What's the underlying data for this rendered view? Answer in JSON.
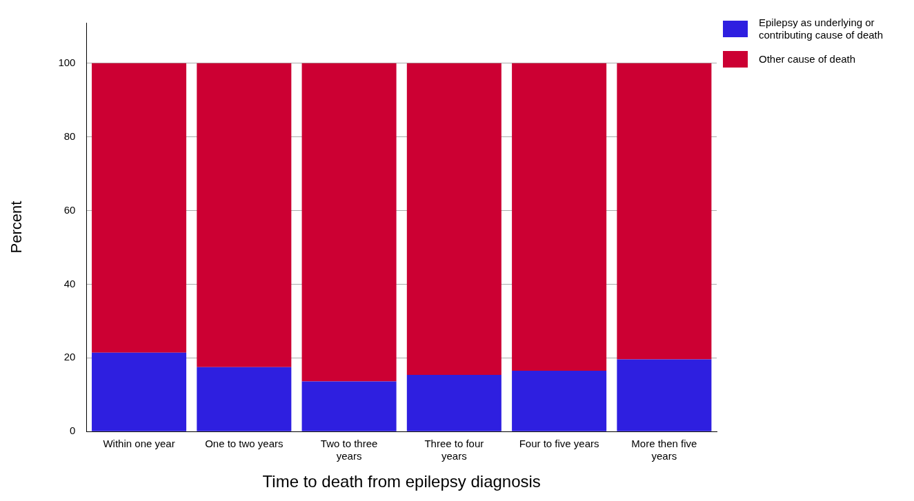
{
  "chart_data": {
    "type": "bar",
    "stacked": true,
    "xlabel": "Time to death from epilepsy diagnosis",
    "ylabel": "Percent",
    "categories": [
      "Within one year",
      "One to two years",
      "Two to three years",
      "Three to four years",
      "Four to five years",
      "More then five years"
    ],
    "series": [
      {
        "name": "Epilepsy as underlying or contributing cause of death",
        "color": "#2e1fe0",
        "values": [
          21.4,
          17.5,
          13.6,
          15.4,
          16.5,
          19.6
        ]
      },
      {
        "name": "Other cause of death",
        "color": "#cc0033",
        "values": [
          78.6,
          82.5,
          86.4,
          84.6,
          83.5,
          80.4
        ]
      }
    ],
    "ylim": [
      0,
      111
    ],
    "yticks": [
      0,
      20,
      40,
      60,
      80,
      100
    ],
    "grid": "y",
    "legend": "top right"
  }
}
